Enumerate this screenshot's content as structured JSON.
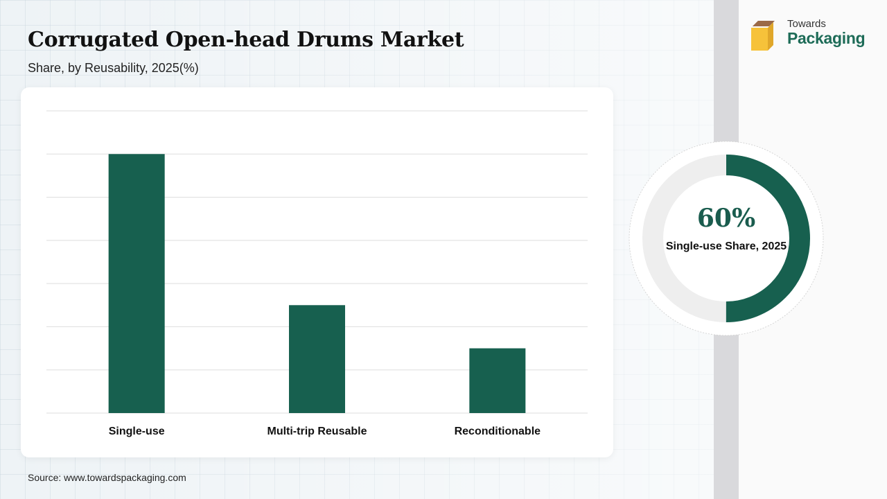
{
  "header": {
    "title": "Corrugated Open-head Drums Market",
    "subtitle": "Share, by Reusability, 2025(%)"
  },
  "logo": {
    "line1": "Towards",
    "line2": "Packaging",
    "icon": "box-icon"
  },
  "colors": {
    "bar": "#17604f",
    "donut_fill": "#17604f",
    "donut_track": "#eeeeee",
    "gridline": "#dddddd"
  },
  "chart_data": {
    "type": "bar",
    "categories": [
      "Single-use",
      "Multi-trip Reusable",
      "Reconditionable"
    ],
    "values": [
      60,
      25,
      15
    ],
    "title": "Corrugated Open-head Drums Market",
    "subtitle": "Share, by Reusability, 2025(%)",
    "xlabel": "",
    "ylabel": "",
    "ylim": [
      0,
      70
    ],
    "grid": true,
    "gridline_count": 8,
    "legend": "none"
  },
  "highlight": {
    "value": "60%",
    "label": "Single-use Share, 2025",
    "fraction": 0.6
  },
  "footer": {
    "source": "Source: www.towardspackaging.com"
  }
}
